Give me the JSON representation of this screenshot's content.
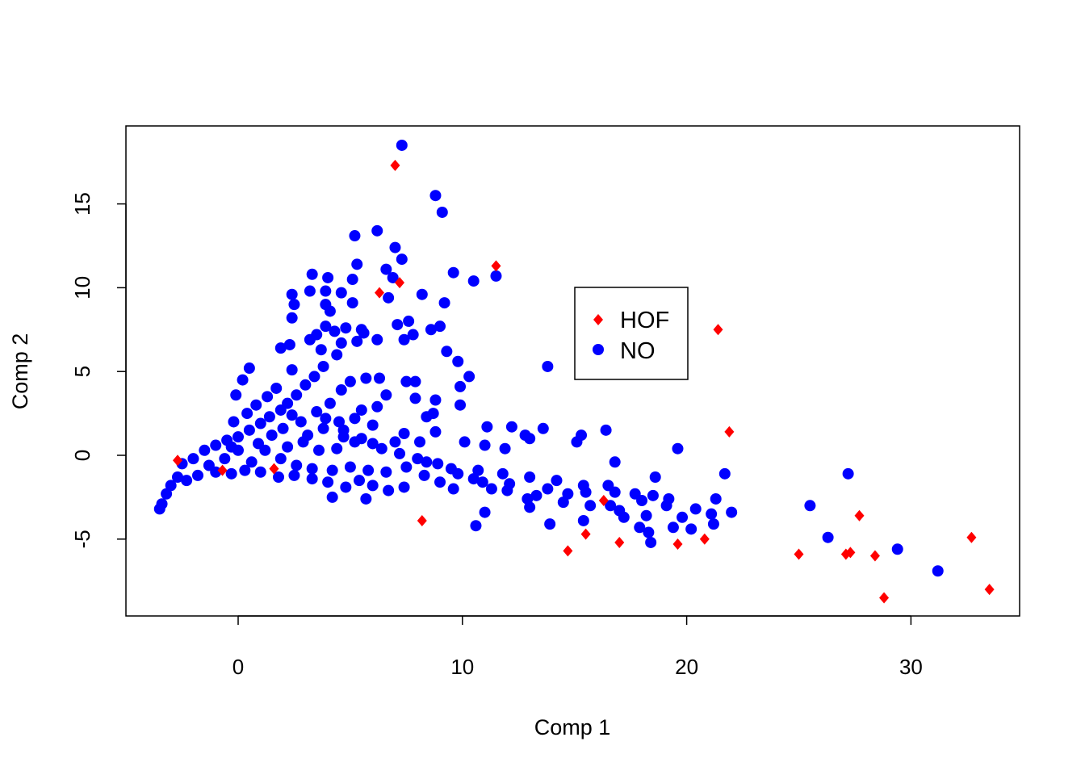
{
  "chart_data": {
    "type": "scatter",
    "title": "",
    "xlabel": "Comp 1",
    "ylabel": "Comp 2",
    "xlim": [
      -5,
      35
    ],
    "ylim": [
      -9.5,
      19.5
    ],
    "xticks": [
      0,
      10,
      20,
      30
    ],
    "yticks": [
      -5,
      0,
      5,
      10,
      15
    ],
    "grid": false,
    "legend": {
      "placement": "top-center-right",
      "entries": [
        {
          "label": "HOF",
          "color": "#ff0000",
          "marker": "diamond"
        },
        {
          "label": "NO",
          "color": "#0000ff",
          "marker": "circle"
        }
      ]
    },
    "series": [
      {
        "name": "HOF",
        "color": "#ff0000",
        "marker": "diamond",
        "points": [
          [
            7.0,
            17.3
          ],
          [
            11.5,
            11.3
          ],
          [
            7.2,
            10.3
          ],
          [
            6.3,
            9.7
          ],
          [
            21.4,
            7.5
          ],
          [
            21.9,
            1.4
          ],
          [
            -2.7,
            -0.3
          ],
          [
            -0.7,
            -0.9
          ],
          [
            1.6,
            -0.8
          ],
          [
            8.2,
            -3.9
          ],
          [
            16.3,
            -2.7
          ],
          [
            27.7,
            -3.6
          ],
          [
            32.7,
            -4.9
          ],
          [
            15.5,
            -4.7
          ],
          [
            17.0,
            -5.2
          ],
          [
            19.6,
            -5.3
          ],
          [
            20.8,
            -5.0
          ],
          [
            14.7,
            -5.7
          ],
          [
            25.0,
            -5.9
          ],
          [
            27.1,
            -5.9
          ],
          [
            27.3,
            -5.8
          ],
          [
            28.4,
            -6.0
          ],
          [
            28.8,
            -8.5
          ],
          [
            33.5,
            -8.0
          ]
        ]
      },
      {
        "name": "NO",
        "color": "#0000ff",
        "marker": "circle",
        "points": [
          [
            7.3,
            18.5
          ],
          [
            8.8,
            15.5
          ],
          [
            9.1,
            14.5
          ],
          [
            6.2,
            13.4
          ],
          [
            5.2,
            13.1
          ],
          [
            7.0,
            12.4
          ],
          [
            7.3,
            11.7
          ],
          [
            5.3,
            11.4
          ],
          [
            6.6,
            11.1
          ],
          [
            9.6,
            10.9
          ],
          [
            11.5,
            10.7
          ],
          [
            10.5,
            10.4
          ],
          [
            3.3,
            10.8
          ],
          [
            4.0,
            10.6
          ],
          [
            5.1,
            10.5
          ],
          [
            6.9,
            10.6
          ],
          [
            3.2,
            9.8
          ],
          [
            3.9,
            9.8
          ],
          [
            4.6,
            9.7
          ],
          [
            2.4,
            9.6
          ],
          [
            6.7,
            9.4
          ],
          [
            8.2,
            9.6
          ],
          [
            2.5,
            9.0
          ],
          [
            3.9,
            9.0
          ],
          [
            5.1,
            9.1
          ],
          [
            9.2,
            9.1
          ],
          [
            4.1,
            8.6
          ],
          [
            2.4,
            8.2
          ],
          [
            3.5,
            7.2
          ],
          [
            4.8,
            7.6
          ],
          [
            5.5,
            7.5
          ],
          [
            7.1,
            7.8
          ],
          [
            7.6,
            8.0
          ],
          [
            9.0,
            7.7
          ],
          [
            8.6,
            7.5
          ],
          [
            3.9,
            7.7
          ],
          [
            4.3,
            7.4
          ],
          [
            5.6,
            7.3
          ],
          [
            7.8,
            7.2
          ],
          [
            3.2,
            6.9
          ],
          [
            4.6,
            6.7
          ],
          [
            5.3,
            6.8
          ],
          [
            6.2,
            6.9
          ],
          [
            7.4,
            6.9
          ],
          [
            2.3,
            6.6
          ],
          [
            1.9,
            6.4
          ],
          [
            3.7,
            6.3
          ],
          [
            9.3,
            6.2
          ],
          [
            13.8,
            5.3
          ],
          [
            9.8,
            5.6
          ],
          [
            10.3,
            4.7
          ],
          [
            9.9,
            4.1
          ],
          [
            7.5,
            4.4
          ],
          [
            7.9,
            4.4
          ],
          [
            5.7,
            4.6
          ],
          [
            6.3,
            4.6
          ],
          [
            2.4,
            5.1
          ],
          [
            0.5,
            5.2
          ],
          [
            0.2,
            4.5
          ],
          [
            -0.1,
            3.6
          ],
          [
            8.8,
            3.3
          ],
          [
            9.9,
            3.0
          ],
          [
            7.9,
            3.4
          ],
          [
            6.6,
            3.6
          ],
          [
            6.2,
            2.9
          ],
          [
            5.5,
            2.7
          ],
          [
            8.4,
            2.3
          ],
          [
            8.7,
            2.5
          ],
          [
            11.1,
            1.7
          ],
          [
            12.2,
            1.7
          ],
          [
            13.6,
            1.6
          ],
          [
            12.8,
            1.2
          ],
          [
            13.0,
            1.0
          ],
          [
            15.3,
            1.2
          ],
          [
            16.4,
            1.5
          ],
          [
            15.1,
            0.8
          ],
          [
            19.6,
            0.4
          ],
          [
            8.8,
            1.4
          ],
          [
            7.4,
            1.3
          ],
          [
            7.0,
            0.8
          ],
          [
            8.1,
            0.8
          ],
          [
            10.1,
            0.8
          ],
          [
            11.0,
            0.6
          ],
          [
            11.9,
            0.4
          ],
          [
            6.0,
            0.7
          ],
          [
            5.2,
            0.8
          ],
          [
            4.7,
            1.1
          ],
          [
            16.8,
            -0.4
          ],
          [
            21.7,
            -1.1
          ],
          [
            18.6,
            -1.3
          ],
          [
            25.5,
            -3.0
          ],
          [
            27.2,
            -1.1
          ],
          [
            26.3,
            -4.9
          ],
          [
            29.4,
            -5.6
          ],
          [
            31.2,
            -6.9
          ],
          [
            10.6,
            -4.2
          ],
          [
            4.2,
            -2.5
          ],
          [
            5.7,
            -2.6
          ],
          [
            11.0,
            -3.4
          ],
          [
            13.0,
            -3.1
          ],
          [
            13.9,
            -4.1
          ],
          [
            15.4,
            -3.9
          ],
          [
            16.6,
            -3.0
          ],
          [
            17.2,
            -3.7
          ],
          [
            17.9,
            -4.3
          ],
          [
            18.3,
            -4.6
          ],
          [
            18.4,
            -5.2
          ],
          [
            19.4,
            -4.3
          ],
          [
            19.8,
            -3.7
          ],
          [
            20.2,
            -4.4
          ],
          [
            21.1,
            -3.5
          ],
          [
            21.2,
            -4.1
          ],
          [
            22.0,
            -3.4
          ],
          [
            21.3,
            -2.6
          ],
          [
            19.2,
            -2.6
          ],
          [
            18.5,
            -2.4
          ],
          [
            17.7,
            -2.3
          ],
          [
            16.5,
            -1.8
          ],
          [
            15.5,
            -2.2
          ],
          [
            14.7,
            -2.3
          ],
          [
            13.8,
            -2.0
          ],
          [
            12.9,
            -2.6
          ],
          [
            12.1,
            -1.7
          ],
          [
            11.3,
            -2.0
          ],
          [
            10.5,
            -1.4
          ],
          [
            9.6,
            -2.0
          ],
          [
            9.0,
            -1.6
          ],
          [
            8.3,
            -1.2
          ],
          [
            7.4,
            -1.9
          ],
          [
            6.7,
            -2.1
          ],
          [
            6.0,
            -1.8
          ],
          [
            5.4,
            -1.5
          ],
          [
            4.8,
            -1.9
          ],
          [
            4.0,
            -1.6
          ],
          [
            3.3,
            -1.4
          ],
          [
            2.5,
            -1.2
          ],
          [
            1.8,
            -1.3
          ],
          [
            1.0,
            -1.0
          ],
          [
            0.3,
            -0.9
          ],
          [
            -0.3,
            -1.1
          ],
          [
            -1.0,
            -1.0
          ],
          [
            -1.8,
            -1.2
          ],
          [
            -2.3,
            -1.5
          ],
          [
            -2.7,
            -1.3
          ],
          [
            -3.0,
            -1.8
          ],
          [
            -3.2,
            -2.3
          ],
          [
            -3.4,
            -2.9
          ],
          [
            -3.5,
            -3.2
          ],
          [
            -2.5,
            -0.5
          ],
          [
            -2.0,
            -0.2
          ],
          [
            -1.5,
            0.3
          ],
          [
            -1.0,
            0.6
          ],
          [
            -0.5,
            0.9
          ],
          [
            0.0,
            1.1
          ],
          [
            0.5,
            1.5
          ],
          [
            1.0,
            1.9
          ],
          [
            1.4,
            2.3
          ],
          [
            1.9,
            2.7
          ],
          [
            2.2,
            3.1
          ],
          [
            2.6,
            3.6
          ],
          [
            3.0,
            4.2
          ],
          [
            3.4,
            4.7
          ],
          [
            3.8,
            5.3
          ],
          [
            4.4,
            6.0
          ],
          [
            0.8,
            3.0
          ],
          [
            1.3,
            3.5
          ],
          [
            1.7,
            4.0
          ],
          [
            -0.2,
            2.0
          ],
          [
            0.4,
            2.5
          ],
          [
            2.8,
            2.0
          ],
          [
            3.5,
            2.6
          ],
          [
            4.1,
            3.1
          ],
          [
            4.6,
            3.9
          ],
          [
            5.0,
            4.4
          ],
          [
            3.1,
            1.2
          ],
          [
            3.8,
            1.6
          ],
          [
            4.5,
            2.0
          ],
          [
            5.2,
            2.2
          ],
          [
            6.0,
            1.8
          ],
          [
            2.2,
            0.5
          ],
          [
            2.9,
            0.8
          ],
          [
            3.6,
            0.3
          ],
          [
            4.4,
            0.4
          ],
          [
            1.2,
            0.3
          ],
          [
            0.6,
            -0.4
          ],
          [
            1.9,
            -0.2
          ],
          [
            2.6,
            -0.6
          ],
          [
            3.3,
            -0.8
          ],
          [
            4.2,
            -0.9
          ],
          [
            5.0,
            -0.7
          ],
          [
            5.8,
            -0.9
          ],
          [
            6.6,
            -1.0
          ],
          [
            7.5,
            -0.7
          ],
          [
            8.4,
            -0.4
          ],
          [
            9.5,
            -0.8
          ],
          [
            10.7,
            -0.9
          ],
          [
            11.8,
            -1.1
          ],
          [
            13.0,
            -1.3
          ],
          [
            14.2,
            -1.5
          ],
          [
            15.4,
            -1.8
          ],
          [
            16.8,
            -2.2
          ],
          [
            18.0,
            -2.7
          ],
          [
            19.1,
            -3.0
          ],
          [
            20.4,
            -3.2
          ],
          [
            0.0,
            0.3
          ],
          [
            -0.6,
            -0.2
          ],
          [
            -1.3,
            -0.6
          ],
          [
            1.5,
            1.2
          ],
          [
            2.0,
            1.6
          ],
          [
            2.4,
            2.4
          ],
          [
            0.9,
            0.7
          ],
          [
            -0.3,
            0.5
          ],
          [
            3.9,
            2.2
          ],
          [
            4.7,
            1.5
          ],
          [
            5.5,
            1.0
          ],
          [
            6.4,
            0.4
          ],
          [
            7.2,
            0.1
          ],
          [
            8.0,
            -0.2
          ],
          [
            8.9,
            -0.5
          ],
          [
            9.8,
            -1.1
          ],
          [
            10.9,
            -1.6
          ],
          [
            12.0,
            -2.1
          ],
          [
            13.3,
            -2.4
          ],
          [
            14.5,
            -2.8
          ],
          [
            15.7,
            -3.0
          ],
          [
            17.0,
            -3.3
          ],
          [
            18.2,
            -3.6
          ]
        ]
      }
    ]
  }
}
